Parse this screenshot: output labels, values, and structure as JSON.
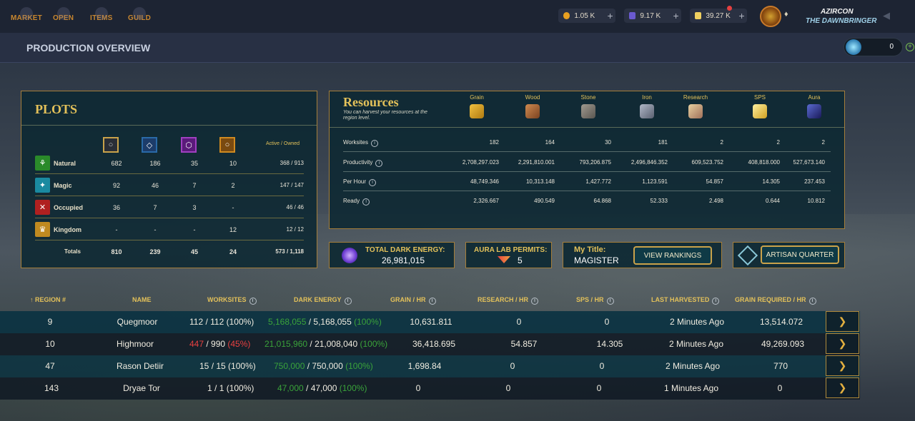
{
  "nav": {
    "items": [
      "MARKET",
      "OPEN",
      "ITEMS",
      "GUILD"
    ]
  },
  "currencies": [
    {
      "icon": "coin-icon",
      "value": "1.05 K",
      "color": "#e8a020"
    },
    {
      "icon": "merit-icon",
      "value": "9.17 K",
      "color": "#6a5ad0"
    },
    {
      "icon": "energy-shard-icon",
      "value": "39.27 K",
      "color": "#f0d060"
    }
  ],
  "user": {
    "name": "AZIRCON",
    "title": "THE DAWNBRINGER"
  },
  "page": {
    "title": "PRODUCTION OVERVIEW",
    "energy_value": "0"
  },
  "plots": {
    "title": "PLOTS",
    "col_title": "Active / Owned",
    "column_icons": [
      "common-deed-icon",
      "rare-deed-icon",
      "epic-deed-icon",
      "legendary-deed-icon"
    ],
    "rows": [
      {
        "label": "Natural",
        "icon": "natural-icon",
        "values": [
          "682",
          "186",
          "35",
          "10"
        ],
        "owned": "368 / 913"
      },
      {
        "label": "Magic",
        "icon": "magic-icon",
        "values": [
          "92",
          "46",
          "7",
          "2"
        ],
        "owned": "147 / 147"
      },
      {
        "label": "Occupied",
        "icon": "occupied-icon",
        "values": [
          "36",
          "7",
          "3",
          "-"
        ],
        "owned": "46 / 46"
      },
      {
        "label": "Kingdom",
        "icon": "kingdom-icon",
        "values": [
          "-",
          "-",
          "-",
          "12"
        ],
        "owned": "12 / 12"
      }
    ],
    "totals": {
      "label": "Totals",
      "values": [
        "810",
        "239",
        "45",
        "24"
      ],
      "owned": "573 / 1,118"
    }
  },
  "resources": {
    "title": "Resources",
    "subtitle": "You can harvest your resources at the region level.",
    "columns": [
      "Grain",
      "Wood",
      "Stone",
      "Iron",
      "Research",
      "SPS",
      "Aura"
    ],
    "rows": [
      {
        "label": "Worksites",
        "values": [
          "182",
          "164",
          "30",
          "181",
          "2",
          "2",
          "2"
        ]
      },
      {
        "label": "Productivity",
        "values": [
          "2,708,297.023",
          "2,291,810.001",
          "793,206.875",
          "2,496,846.352",
          "609,523.752",
          "408,818.000",
          "527,673.140"
        ]
      },
      {
        "label": "Per Hour",
        "values": [
          "48,749.346",
          "10,313.148",
          "1,427.772",
          "1,123.591",
          "54.857",
          "14.305",
          "237.453"
        ]
      },
      {
        "label": "Ready",
        "values": [
          "2,326.667",
          "490.549",
          "64.868",
          "52.333",
          "2.498",
          "0.644",
          "10.812"
        ]
      }
    ]
  },
  "stats": {
    "dark_energy_label": "TOTAL DARK ENERGY:",
    "dark_energy_value": "26,981,015",
    "permits_label": "AURA LAB PERMITS:",
    "permits_value": "5",
    "my_title_label": "My Title:",
    "my_title_value": "MAGISTER",
    "view_rankings": "VIEW RANKINGS",
    "artisan_quarter": "ARTISAN QUARTER"
  },
  "table": {
    "headers": [
      "REGION #",
      "NAME",
      "WORKSITES",
      "DARK ENERGY",
      "GRAIN / HR",
      "RESEARCH / HR",
      "SPS / HR",
      "LAST HARVESTED",
      "GRAIN REQUIRED / HR"
    ],
    "rows": [
      {
        "region": "9",
        "name": "Quegmoor",
        "ws_active": "112",
        "ws_total": " / 112 ",
        "ws_pct": "(100%)",
        "ws_warn": false,
        "de_cur": "5,168,055",
        "de_total": " / 5,168,055 ",
        "de_pct": "(100%)",
        "grain": "10,631.811",
        "research": "0",
        "sps": "0",
        "last": "2 Minutes Ago",
        "required": "13,514.072"
      },
      {
        "region": "10",
        "name": "Highmoor",
        "ws_active": "447",
        "ws_total": " / 990 ",
        "ws_pct": "(45%)",
        "ws_warn": true,
        "de_cur": "21,015,960",
        "de_total": " / 21,008,040 ",
        "de_pct": "(100%)",
        "grain": "36,418.695",
        "research": "54.857",
        "sps": "14.305",
        "last": "2 Minutes Ago",
        "required": "49,269.093"
      },
      {
        "region": "47",
        "name": "Rason Detiir",
        "ws_active": "15",
        "ws_total": " / 15 ",
        "ws_pct": "(100%)",
        "ws_warn": false,
        "de_cur": "750,000",
        "de_total": " / 750,000 ",
        "de_pct": "(100%)",
        "grain": "1,698.84",
        "research": "0",
        "sps": "0",
        "last": "2 Minutes Ago",
        "required": "770"
      },
      {
        "region": "143",
        "name": "Dryae Tor",
        "ws_active": "1",
        "ws_total": " / 1 ",
        "ws_pct": "(100%)",
        "ws_warn": false,
        "de_cur": "47,000",
        "de_total": " / 47,000 ",
        "de_pct": "(100%)",
        "grain": "0",
        "research": "0",
        "sps": "0",
        "last": "1 Minutes Ago",
        "required": "0"
      }
    ]
  }
}
